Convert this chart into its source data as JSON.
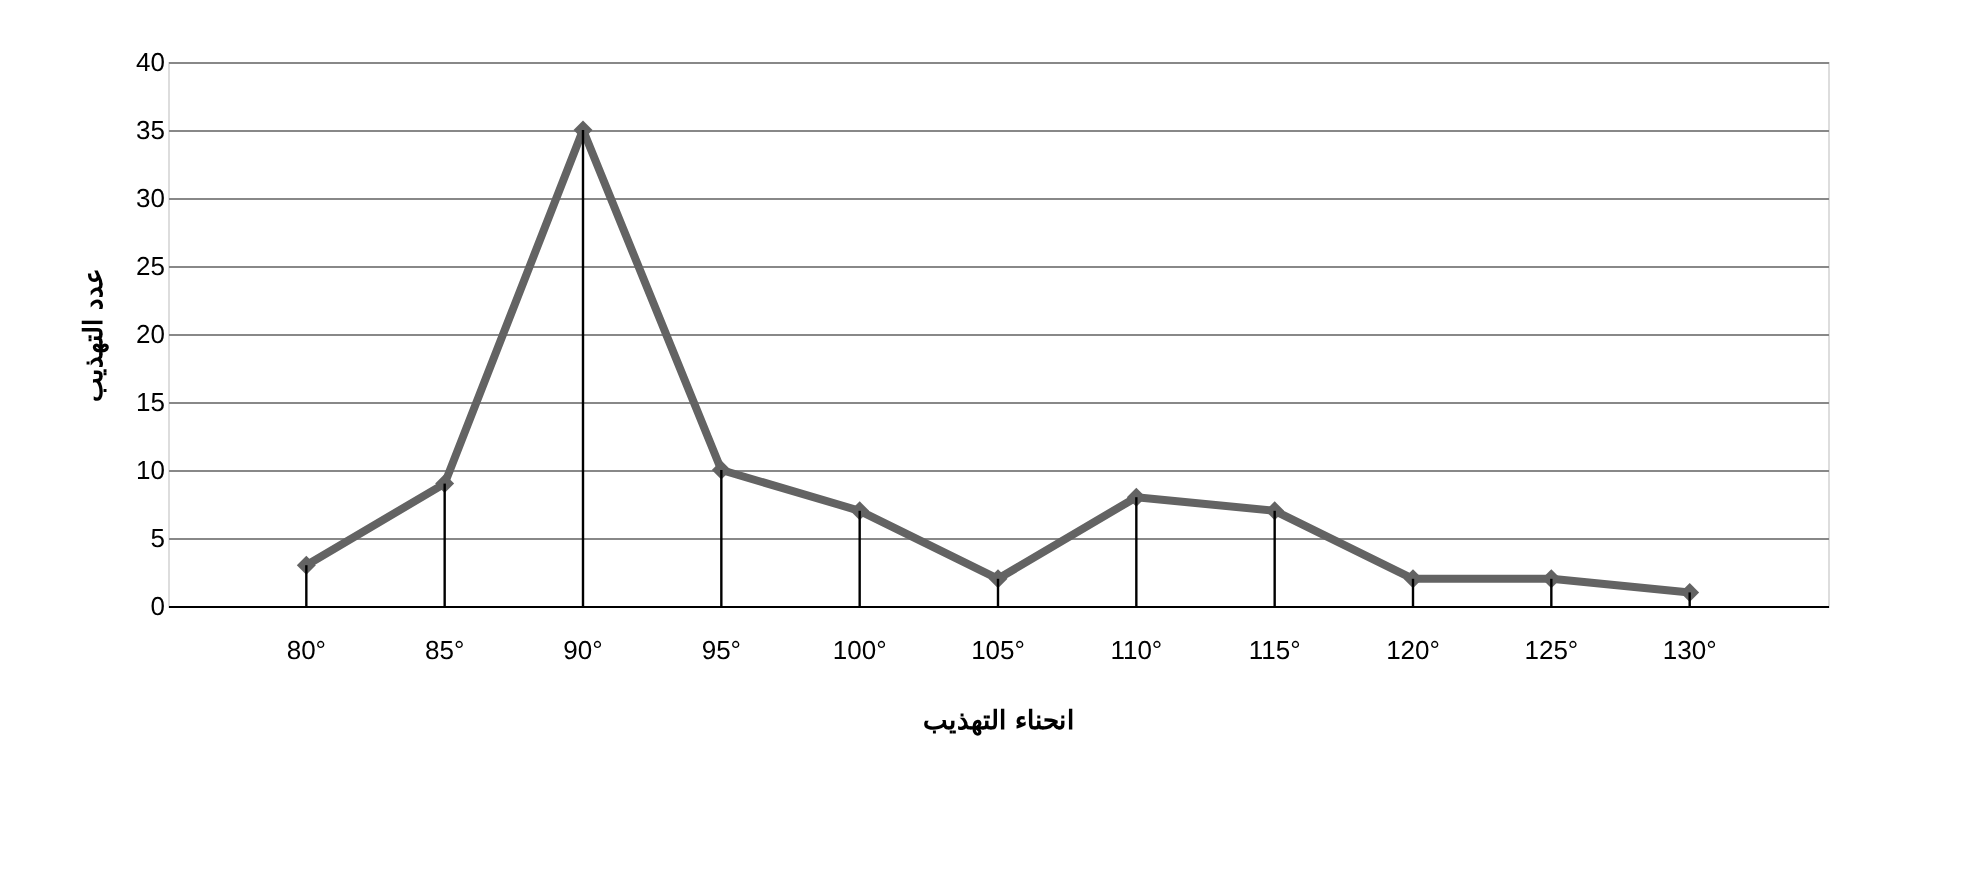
{
  "chart_data": {
    "type": "line",
    "xlabel": "انحناء التهذيب",
    "ylabel": "عدد التهذيب",
    "categories": [
      "80°",
      "85°",
      "90°",
      "95°",
      "100°",
      "105°",
      "110°",
      "115°",
      "120°",
      "125°",
      "130°"
    ],
    "series": [
      {
        "color": "#636363",
        "values": [
          3,
          9,
          35,
          10,
          7,
          2,
          8,
          7,
          2,
          2,
          1
        ]
      },
      {
        "type": "bar",
        "color": "#000000",
        "values": [
          3,
          9,
          35,
          10,
          7,
          2,
          8,
          7,
          2,
          2,
          1
        ]
      }
    ],
    "ylim": [
      0,
      40
    ],
    "yticks": [
      0,
      5,
      10,
      15,
      20,
      25,
      30,
      35,
      40
    ],
    "grid": "y",
    "marker": "diamond",
    "line_style": "solid"
  }
}
